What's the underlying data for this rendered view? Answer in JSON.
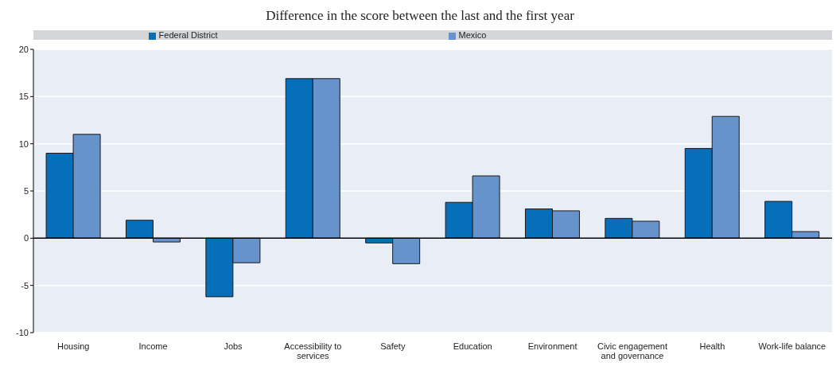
{
  "chart_data": {
    "type": "bar",
    "title": "Difference in the score between the last and the first year",
    "categories": [
      "Housing",
      "Income",
      "Jobs",
      "Accessibility to services",
      "Safety",
      "Education",
      "Environment",
      "Civic engagement and governance",
      "Health",
      "Work-life balance"
    ],
    "series": [
      {
        "name": "Federal District",
        "color": "#0570b9",
        "values": [
          9.0,
          1.9,
          -6.2,
          16.9,
          -0.5,
          3.8,
          3.1,
          2.1,
          9.5,
          3.9
        ]
      },
      {
        "name": "Mexico",
        "color": "#6693cc",
        "values": [
          11.0,
          -0.4,
          -2.6,
          16.9,
          -2.7,
          6.6,
          2.9,
          1.8,
          12.9,
          0.7
        ]
      }
    ],
    "ylim": [
      -10,
      20
    ],
    "yticks": [
      -10,
      -5,
      0,
      5,
      10,
      15,
      20
    ],
    "grid": "y",
    "legend": "top"
  }
}
